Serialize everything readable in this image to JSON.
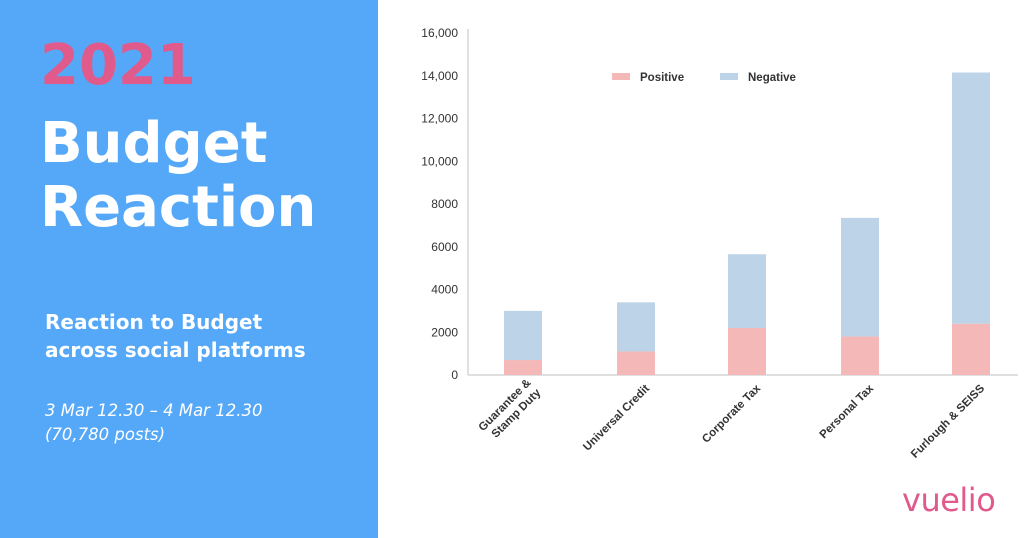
{
  "panel": {
    "year": "2021",
    "title_lines": [
      "Budget",
      "Reaction"
    ],
    "subtitle_lines": [
      "Reaction to Budget",
      "across social platforms"
    ],
    "date_lines": [
      "3 Mar 12.30 – 4 Mar 12.30",
      "(70,780 posts)"
    ],
    "background_color": "#55a8f8",
    "accent_color": "#e05a8c"
  },
  "brand": {
    "logo_text": "vuelio"
  },
  "chart_data": {
    "type": "bar",
    "stacked": true,
    "categories": [
      "Guarantee & Stamp Duty",
      "Universal Credit",
      "Corporate Tax",
      "Personal Tax",
      "Furlough & SEISS"
    ],
    "category_lines": [
      [
        "Guarantee &",
        "Stamp Duty"
      ],
      [
        "Universal Credit"
      ],
      [
        "Corporate Tax"
      ],
      [
        "Personal Tax"
      ],
      [
        "Furlough & SEISS"
      ]
    ],
    "series": [
      {
        "name": "Positive",
        "color": "#f5b8b8",
        "values": [
          700,
          1100,
          2200,
          1800,
          2400
        ]
      },
      {
        "name": "Negative",
        "color": "#bcd3e8",
        "values": [
          2300,
          2300,
          3450,
          5550,
          11750
        ]
      }
    ],
    "ylim": [
      0,
      16000
    ],
    "yticks": [
      0,
      2000,
      4000,
      6000,
      8000,
      10000,
      12000,
      14000,
      16000
    ],
    "ytick_labels": [
      "0",
      "2000",
      "4000",
      "6000",
      "8000",
      "10,000",
      "12,000",
      "14,000",
      "16,000"
    ],
    "grid": false,
    "legend_position": "top"
  }
}
